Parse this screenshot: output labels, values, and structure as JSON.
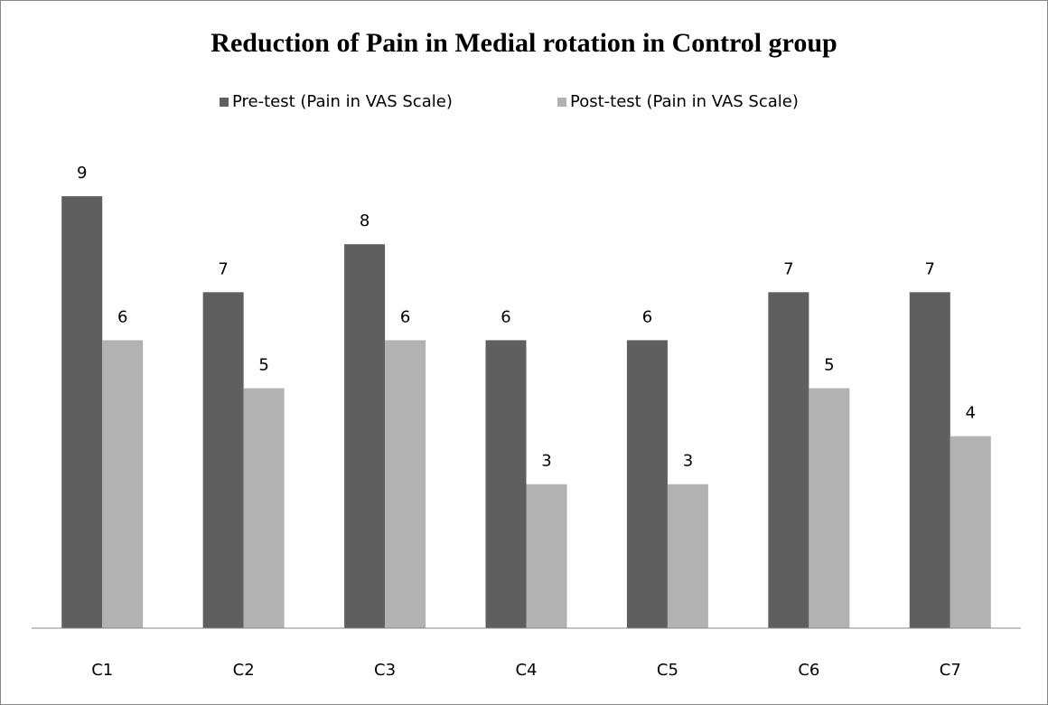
{
  "chart_data": {
    "type": "bar",
    "title": "Reduction of Pain in Medial  rotation in Control group",
    "categories": [
      "C1",
      "C2",
      "C3",
      "C4",
      "C5",
      "C6",
      "C7"
    ],
    "series": [
      {
        "name": "Pre-test (Pain in VAS Scale)",
        "color": "#5f5f5f",
        "values": [
          9,
          7,
          8,
          6,
          6,
          7,
          7
        ]
      },
      {
        "name": "Post-test (Pain in VAS Scale)",
        "color": "#b2b2b2",
        "values": [
          6,
          5,
          6,
          3,
          3,
          5,
          4
        ]
      }
    ],
    "ylim": [
      0,
      10
    ],
    "grid": false,
    "legend": "top"
  }
}
